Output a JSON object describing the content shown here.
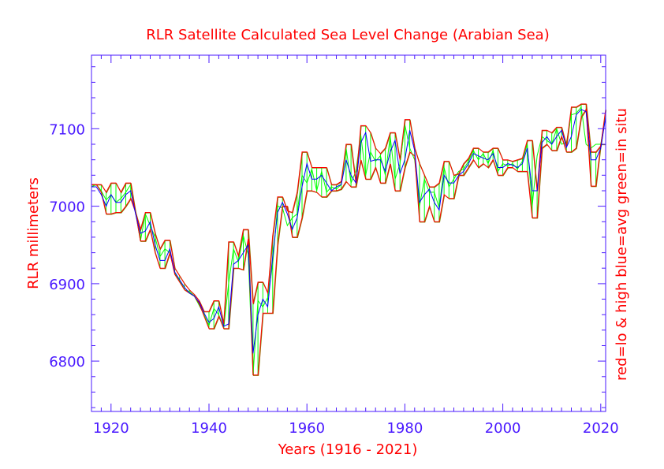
{
  "colors": {
    "axis": "#4a1aff",
    "tick_label": "#4a1aff",
    "title": "#ff0000",
    "low_high": "#ff0000",
    "average": "#0000ff",
    "in_situ": "#00ff00",
    "olive": "#808000"
  },
  "chart_data": {
    "type": "line",
    "title": "RLR Satellite Calculated Sea Level Change (Arabian Sea)",
    "xlabel": "Years (1916 - 2021)",
    "ylabel": "RLR millimeters",
    "right_label": "red=lo & high  blue=avg  green=in situ",
    "xlim": [
      1916,
      2021
    ],
    "ylim": [
      6735,
      7195
    ],
    "xticks": [
      1920,
      1940,
      1960,
      1980,
      2000,
      2020
    ],
    "xtick_labels": [
      "1920",
      "1940",
      "1960",
      "1980",
      "2000",
      "2020"
    ],
    "yticks": [
      6800,
      6900,
      7000,
      7100
    ],
    "ytick_labels": [
      "6800",
      "6900",
      "7000",
      "7100"
    ],
    "x": [
      1916,
      1917,
      1918,
      1919,
      1920,
      1921,
      1922,
      1923,
      1924,
      1925,
      1926,
      1927,
      1928,
      1929,
      1930,
      1931,
      1932,
      1933,
      1934,
      1935,
      1936,
      1937,
      1938,
      1939,
      1940,
      1941,
      1942,
      1943,
      1944,
      1945,
      1946,
      1947,
      1948,
      1949,
      1950,
      1951,
      1952,
      1953,
      1954,
      1955,
      1956,
      1957,
      1958,
      1959,
      1960,
      1961,
      1962,
      1963,
      1964,
      1965,
      1966,
      1967,
      1968,
      1969,
      1970,
      1971,
      1972,
      1973,
      1974,
      1975,
      1976,
      1977,
      1978,
      1979,
      1980,
      1981,
      1982,
      1983,
      1984,
      1985,
      1986,
      1987,
      1988,
      1989,
      1990,
      1991,
      1992,
      1993,
      1994,
      1995,
      1996,
      1997,
      1998,
      1999,
      2000,
      2001,
      2002,
      2003,
      2004,
      2005,
      2006,
      2007,
      2008,
      2009,
      2010,
      2011,
      2012,
      2013,
      2014,
      2015,
      2016,
      2017,
      2018,
      2019,
      2020,
      2021
    ],
    "series": [
      {
        "name": "high",
        "color": "red",
        "values": [
          7028,
          7028,
          7028,
          7018,
          7030,
          7030,
          7018,
          7030,
          7030,
          6992,
          6970,
          6992,
          6992,
          6965,
          6945,
          6956,
          6956,
          6920,
          6910,
          6900,
          6892,
          6886,
          6878,
          6864,
          6864,
          6878,
          6878,
          6848,
          6954,
          6954,
          6936,
          6970,
          6970,
          6874,
          6902,
          6902,
          6888,
          6962,
          7012,
          7012,
          6994,
          6992,
          7018,
          7070,
          7070,
          7050,
          7050,
          7050,
          7050,
          7028,
          7028,
          7032,
          7080,
          7080,
          7030,
          7104,
          7104,
          7095,
          7075,
          7068,
          7075,
          7095,
          7095,
          7060,
          7112,
          7112,
          7075,
          7055,
          7040,
          7025,
          7025,
          7030,
          7058,
          7058,
          7040,
          7042,
          7055,
          7062,
          7075,
          7075,
          7070,
          7070,
          7075,
          7075,
          7060,
          7060,
          7058,
          7060,
          7062,
          7085,
          7085,
          7020,
          7098,
          7098,
          7095,
          7102,
          7102,
          7078,
          7128,
          7128,
          7132,
          7132,
          7070,
          7070,
          7078,
          7125
        ]
      },
      {
        "name": "low",
        "color": "red",
        "values": [
          7028,
          7028,
          7018,
          6990,
          6990,
          6992,
          6992,
          7000,
          7010,
          6992,
          6955,
          6955,
          6970,
          6940,
          6920,
          6920,
          6940,
          6912,
          6902,
          6892,
          6888,
          6884,
          6874,
          6858,
          6842,
          6842,
          6858,
          6842,
          6842,
          6920,
          6920,
          6918,
          6958,
          6782,
          6782,
          6862,
          6862,
          6862,
          6950,
          7000,
          7000,
          6960,
          6960,
          6985,
          7020,
          7020,
          7018,
          7012,
          7012,
          7020,
          7020,
          7022,
          7032,
          7025,
          7025,
          7060,
          7035,
          7035,
          7050,
          7030,
          7030,
          7055,
          7020,
          7020,
          7050,
          7070,
          7065,
          6980,
          6980,
          7000,
          6980,
          6980,
          7015,
          7010,
          7010,
          7040,
          7040,
          7050,
          7060,
          7050,
          7055,
          7050,
          7060,
          7040,
          7040,
          7050,
          7050,
          7045,
          7045,
          7045,
          6985,
          6985,
          7075,
          7080,
          7072,
          7072,
          7090,
          7070,
          7070,
          7075,
          7115,
          7125,
          7026,
          7026,
          7080,
          7080
        ]
      },
      {
        "name": "avg",
        "color": "blue",
        "values": [
          7025,
          7025,
          7015,
          7000,
          7015,
          7005,
          7005,
          7015,
          7020,
          6990,
          6965,
          6968,
          6980,
          6950,
          6930,
          6930,
          6945,
          6915,
          6905,
          6895,
          6888,
          6884,
          6876,
          6862,
          6850,
          6855,
          6870,
          6845,
          6848,
          6925,
          6930,
          6940,
          6950,
          6810,
          6860,
          6880,
          6870,
          6935,
          6992,
          7005,
          6990,
          6970,
          6985,
          7025,
          7055,
          7035,
          7035,
          7040,
          7030,
          7020,
          7025,
          7028,
          7060,
          7040,
          7030,
          7082,
          7095,
          7058,
          7060,
          7060,
          7045,
          7070,
          7085,
          7042,
          7060,
          7098,
          7072,
          7005,
          7015,
          7022,
          7005,
          6995,
          7040,
          7030,
          7030,
          7040,
          7045,
          7055,
          7068,
          7065,
          7062,
          7060,
          7068,
          7050,
          7050,
          7055,
          7053,
          7050,
          7055,
          7075,
          7020,
          7020,
          7082,
          7090,
          7080,
          7090,
          7098,
          7076,
          7090,
          7118,
          7125,
          7122,
          7060,
          7060,
          7075,
          7115
        ]
      },
      {
        "name": "in situ",
        "color": "green",
        "values": [
          7025,
          7028,
          7020,
          7008,
          7015,
          7005,
          7010,
          7018,
          7028,
          6992,
          6955,
          6990,
          6975,
          6960,
          6935,
          6945,
          6940,
          6914,
          6904,
          6892,
          6890,
          6884,
          6872,
          6860,
          6846,
          6868,
          6860,
          6843,
          6900,
          6945,
          6928,
          6962,
          6938,
          6782,
          6878,
          6870,
          6882,
          6925,
          7000,
          6998,
          6975,
          6985,
          6990,
          7040,
          7030,
          7048,
          7020,
          7045,
          7018,
          7025,
          7022,
          7028,
          7075,
          7030,
          7045,
          7092,
          7040,
          7070,
          7058,
          7065,
          7040,
          7090,
          7035,
          7055,
          7105,
          7075,
          7060,
          7000,
          7035,
          7018,
          7018,
          6998,
          7050,
          7025,
          7035,
          7045,
          7048,
          7058,
          7072,
          7060,
          7068,
          7055,
          7072,
          7045,
          7055,
          7052,
          7055,
          7048,
          7058,
          7080,
          7000,
          7065,
          7090,
          7085,
          7080,
          7100,
          7080,
          7082,
          7118,
          7120,
          7128,
          7080,
          7075,
          7080,
          7080,
          7118
        ]
      }
    ]
  }
}
